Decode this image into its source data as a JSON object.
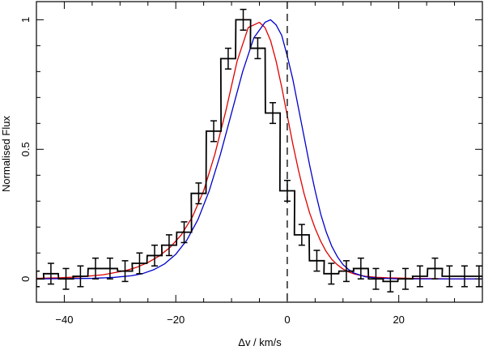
{
  "chart_data": {
    "type": "line",
    "xlabel": "Δv / km/s",
    "ylabel": "Normalised Flux",
    "xlim": [
      -45,
      35
    ],
    "ylim": [
      -0.09,
      1.07
    ],
    "x_ticks": [
      -40,
      -20,
      0,
      20
    ],
    "x_tick_labels": [
      "−40",
      "−20",
      "0",
      "20"
    ],
    "y_ticks": [
      0,
      0.5,
      1
    ],
    "y_tick_labels": [
      "0",
      "0.5",
      "1"
    ],
    "grid": false,
    "reference_line": {
      "x": 0,
      "style": "dashed",
      "color": "#000000"
    },
    "observed": {
      "style": "step-with-errorbars",
      "color": "#000000",
      "bin_width": 2.65,
      "x": [
        -45.0,
        -42.4,
        -39.7,
        -37.1,
        -34.4,
        -31.8,
        -29.1,
        -26.5,
        -23.8,
        -21.2,
        -18.5,
        -15.9,
        -13.2,
        -10.6,
        -7.9,
        -5.3,
        -2.6,
        0.0,
        2.6,
        5.3,
        7.9,
        10.6,
        13.2,
        15.9,
        18.5,
        21.2,
        23.8,
        26.5,
        29.1,
        31.8,
        34.4
      ],
      "y": [
        0.0,
        0.02,
        0.0,
        0.01,
        0.04,
        0.04,
        0.03,
        0.06,
        0.09,
        0.13,
        0.18,
        0.33,
        0.57,
        0.85,
        1.0,
        0.89,
        0.64,
        0.34,
        0.17,
        0.07,
        0.02,
        0.03,
        0.04,
        0.0,
        -0.01,
        0.0,
        0.01,
        0.04,
        0.01,
        0.01,
        0.01
      ],
      "yerr": [
        0.03,
        0.04,
        0.04,
        0.04,
        0.04,
        0.04,
        0.04,
        0.04,
        0.04,
        0.04,
        0.04,
        0.04,
        0.04,
        0.04,
        0.04,
        0.04,
        0.04,
        0.04,
        0.04,
        0.04,
        0.04,
        0.04,
        0.04,
        0.04,
        0.04,
        0.04,
        0.04,
        0.04,
        0.04,
        0.04,
        0.04
      ]
    },
    "series": [
      {
        "style": "smooth-line",
        "color": "#e00000",
        "x": [
          -45,
          -41,
          -37,
          -33,
          -29,
          -27,
          -25,
          -23,
          -21,
          -19,
          -17,
          -15,
          -13,
          -11,
          -9,
          -7,
          -5,
          -4,
          -3,
          -2,
          -1,
          0,
          1,
          2,
          3,
          4,
          5,
          6,
          7,
          8,
          9,
          10,
          11,
          12,
          13,
          14,
          16,
          18,
          22,
          26,
          30,
          35
        ],
        "y": [
          0.002,
          0.004,
          0.008,
          0.016,
          0.032,
          0.045,
          0.063,
          0.088,
          0.122,
          0.17,
          0.24,
          0.34,
          0.48,
          0.65,
          0.84,
          0.97,
          0.99,
          0.97,
          0.92,
          0.84,
          0.74,
          0.63,
          0.52,
          0.42,
          0.33,
          0.255,
          0.195,
          0.145,
          0.105,
          0.075,
          0.054,
          0.038,
          0.027,
          0.019,
          0.014,
          0.01,
          0.006,
          0.004,
          0.002,
          0.001,
          0.0,
          0.0
        ]
      },
      {
        "style": "smooth-line",
        "color": "#0000cc",
        "x": [
          -45,
          -35,
          -31,
          -28,
          -26,
          -24,
          -22,
          -20,
          -18,
          -16,
          -14,
          -12,
          -10,
          -8,
          -6,
          -4,
          -3,
          -2,
          -1,
          0,
          1,
          2,
          3,
          4,
          5,
          6,
          7,
          8,
          9,
          10,
          11,
          12,
          14,
          16,
          20,
          25,
          35
        ],
        "y": [
          0.0,
          0.002,
          0.006,
          0.012,
          0.02,
          0.035,
          0.058,
          0.095,
          0.15,
          0.23,
          0.34,
          0.48,
          0.64,
          0.8,
          0.93,
          0.99,
          1.0,
          0.98,
          0.94,
          0.86,
          0.77,
          0.66,
          0.55,
          0.44,
          0.34,
          0.25,
          0.18,
          0.125,
          0.085,
          0.055,
          0.036,
          0.022,
          0.008,
          0.003,
          0.0,
          0.0,
          0.0
        ]
      }
    ]
  }
}
